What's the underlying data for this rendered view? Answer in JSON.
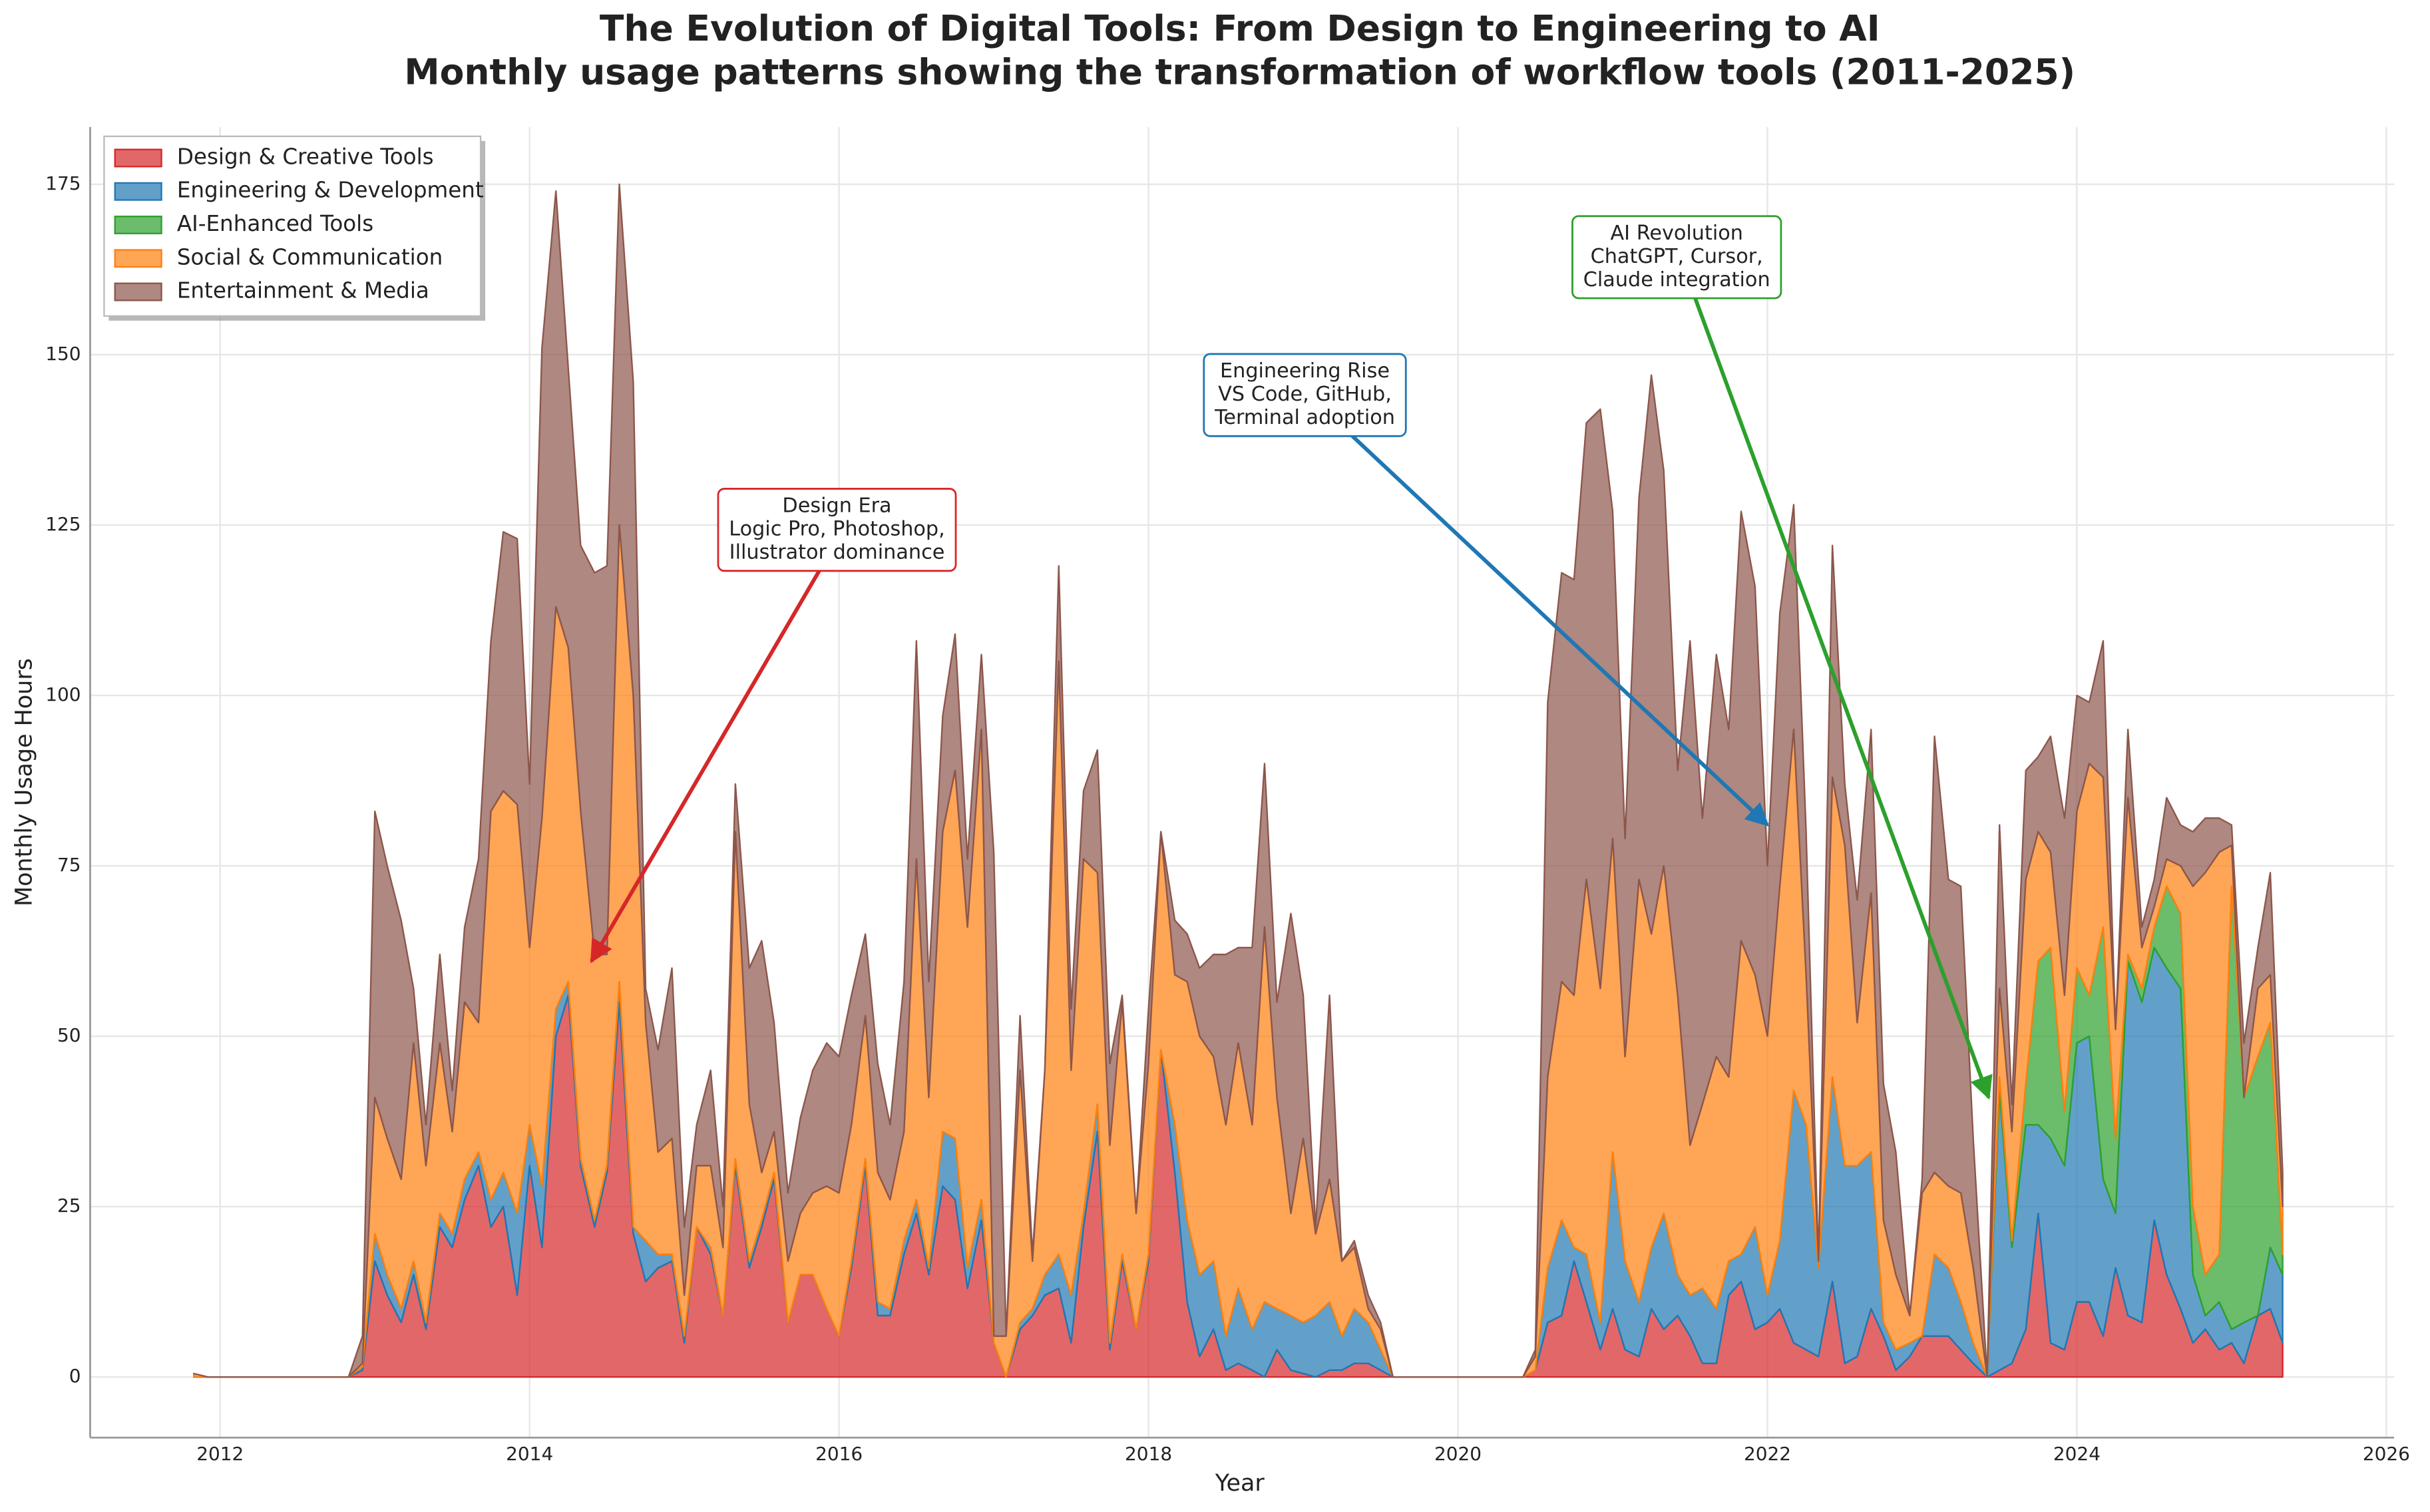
{
  "chart_data": {
    "type": "stacked_area",
    "title": "The Evolution of Digital Tools: From Design to Engineering to AI",
    "subtitle": "Monthly usage patterns showing the transformation of workflow tools (2011-2025)",
    "xlabel": "Year",
    "ylabel": "Monthly Usage Hours",
    "xlim": [
      2011.16,
      2026.05
    ],
    "ylim": [
      -8.9,
      183.4
    ],
    "xticks": [
      2012,
      2014,
      2016,
      2018,
      2020,
      2022,
      2024,
      2026
    ],
    "yticks": [
      0,
      25,
      50,
      75,
      100,
      125,
      150,
      175
    ],
    "grid": true,
    "legend": "upper left",
    "x": [
      2011.83,
      2011.92,
      2012.83,
      2012.92,
      2013.0,
      2013.08,
      2013.17,
      2013.25,
      2013.33,
      2013.42,
      2013.5,
      2013.58,
      2013.67,
      2013.75,
      2013.83,
      2013.92,
      2014.0,
      2014.08,
      2014.17,
      2014.25,
      2014.33,
      2014.42,
      2014.5,
      2014.58,
      2014.67,
      2014.75,
      2014.83,
      2014.92,
      2015.0,
      2015.08,
      2015.17,
      2015.25,
      2015.33,
      2015.42,
      2015.5,
      2015.58,
      2015.67,
      2015.75,
      2015.83,
      2015.92,
      2016.0,
      2016.08,
      2016.17,
      2016.25,
      2016.33,
      2016.42,
      2016.5,
      2016.58,
      2016.67,
      2016.75,
      2016.83,
      2016.92,
      2017.0,
      2017.08,
      2017.17,
      2017.25,
      2017.33,
      2017.42,
      2017.5,
      2017.58,
      2017.67,
      2017.75,
      2017.83,
      2017.92,
      2018.0,
      2018.08,
      2018.17,
      2018.25,
      2018.33,
      2018.42,
      2018.5,
      2018.58,
      2018.67,
      2018.75,
      2018.83,
      2018.92,
      2019.0,
      2019.08,
      2019.17,
      2019.25,
      2019.33,
      2019.42,
      2019.5,
      2019.58,
      2020.42,
      2020.5,
      2020.58,
      2020.67,
      2020.75,
      2020.83,
      2020.92,
      2021.0,
      2021.08,
      2021.17,
      2021.25,
      2021.33,
      2021.42,
      2021.5,
      2021.58,
      2021.67,
      2021.75,
      2021.83,
      2021.92,
      2022.0,
      2022.08,
      2022.17,
      2022.25,
      2022.33,
      2022.42,
      2022.5,
      2022.58,
      2022.67,
      2022.75,
      2022.83,
      2022.92,
      2023.0,
      2023.08,
      2023.17,
      2023.25,
      2023.33,
      2023.42,
      2023.5,
      2023.58,
      2023.67,
      2023.75,
      2023.83,
      2023.92,
      2024.0,
      2024.08,
      2024.17,
      2024.25,
      2024.33,
      2024.42,
      2024.5,
      2024.58,
      2024.67,
      2024.75,
      2024.83,
      2024.92,
      2025.0,
      2025.08,
      2025.17,
      2025.25,
      2025.33
    ],
    "series": [
      {
        "name": "Design & Creative Tools",
        "color": "#d62728",
        "values": [
          0,
          0,
          0,
          1,
          17,
          12,
          8,
          15,
          7,
          22,
          19,
          26,
          31,
          22,
          25,
          12,
          31,
          19,
          50,
          56,
          31,
          22,
          30,
          55,
          21,
          14,
          16,
          17,
          5,
          22,
          18,
          9,
          31,
          16,
          22,
          29,
          8,
          15,
          15,
          10,
          6,
          16,
          31,
          9,
          9,
          18,
          24,
          15,
          28,
          26,
          13,
          23,
          5,
          0,
          7,
          9,
          12,
          13,
          5,
          22,
          36,
          4,
          17,
          7,
          17,
          48,
          30,
          11,
          3,
          7,
          1,
          2,
          1,
          0,
          4,
          1,
          0.5,
          0,
          1,
          1,
          2,
          2,
          1,
          0,
          0,
          1,
          8,
          9,
          17,
          11,
          4,
          10,
          4,
          3,
          10,
          7,
          9,
          6,
          2,
          2,
          12,
          14,
          7,
          8,
          10,
          5,
          4,
          3,
          14,
          2,
          3,
          10,
          6,
          1,
          3,
          6,
          6,
          6,
          4,
          2,
          0,
          1,
          2,
          7,
          24,
          5,
          4,
          11,
          11,
          6,
          16,
          9,
          8,
          23,
          15,
          10,
          5,
          7,
          4,
          5,
          2,
          9,
          10,
          5
        ]
      },
      {
        "name": "Engineering & Development",
        "color": "#1f77b4",
        "values": [
          0,
          0,
          0,
          0.5,
          4,
          3,
          2,
          2,
          1,
          2,
          2,
          3,
          2,
          4,
          5,
          12,
          6,
          9,
          4,
          2,
          1,
          1,
          1,
          3,
          1,
          6,
          2,
          1,
          1,
          0,
          1,
          0,
          1,
          1,
          1,
          1,
          0,
          0,
          0,
          0,
          0,
          1,
          1,
          2,
          1,
          2,
          2,
          1,
          8,
          9,
          3,
          3,
          0,
          0,
          1,
          1,
          3,
          5,
          7,
          2,
          4,
          1,
          1,
          0,
          1,
          0,
          7,
          12,
          12,
          10,
          5,
          11,
          6,
          11,
          6,
          8,
          7.5,
          9,
          10,
          5,
          8,
          6,
          3,
          0,
          0,
          0,
          8,
          14,
          2,
          7,
          4,
          23,
          13,
          8,
          9,
          17,
          6,
          6,
          11,
          8,
          5,
          4,
          15,
          4,
          10,
          37,
          33,
          13,
          30,
          29,
          28,
          23,
          2,
          3,
          2,
          0,
          12,
          10,
          7,
          3,
          0,
          41,
          17,
          30,
          13,
          30,
          27,
          38,
          39,
          23,
          8,
          52,
          47,
          40,
          45,
          47,
          10,
          2,
          7,
          2,
          6,
          0,
          9,
          10
        ]
      },
      {
        "name": "AI-Enhanced Tools",
        "color": "#2ca02c",
        "values": [
          0,
          0,
          0,
          0,
          0,
          0,
          0,
          0,
          0,
          0,
          0,
          0,
          0,
          0,
          0,
          0,
          0,
          0,
          0,
          0,
          0,
          0,
          0,
          0,
          0,
          0,
          0,
          0,
          0,
          0,
          0,
          0,
          0,
          0,
          0,
          0,
          0,
          0,
          0,
          0,
          0,
          0,
          0,
          0,
          0,
          0,
          0,
          0,
          0,
          0,
          0,
          0,
          0,
          0,
          0,
          0,
          0,
          0,
          0,
          0,
          0,
          0,
          0,
          0,
          0,
          0,
          0,
          0,
          0,
          0,
          0,
          0,
          0,
          0,
          0,
          0,
          0,
          0,
          0,
          0,
          0,
          0,
          0,
          0,
          0,
          0,
          0,
          0,
          0,
          0,
          0,
          0,
          0,
          0,
          0,
          0,
          0,
          0,
          0,
          0,
          0,
          0,
          0,
          0,
          0,
          0,
          0,
          0,
          0,
          0,
          0,
          0,
          0,
          0,
          0,
          0,
          0,
          0,
          0,
          0,
          0,
          2,
          1,
          6,
          24,
          28,
          8,
          11,
          6,
          37,
          11,
          1,
          2,
          3,
          12,
          11,
          10,
          6,
          7,
          65,
          33,
          38,
          33,
          3
        ]
      },
      {
        "name": "Social & Communication",
        "color": "#ff7f0e",
        "values": [
          0.5,
          0,
          0,
          0.5,
          20,
          20,
          19,
          32,
          23,
          25,
          15,
          26,
          19,
          57,
          56,
          60,
          26,
          54,
          59,
          49,
          51,
          39,
          31,
          67,
          78,
          32,
          15,
          17,
          6,
          9,
          12,
          10,
          48,
          23,
          7,
          6,
          9,
          9,
          12,
          18,
          21,
          20,
          21,
          19,
          16,
          16,
          50,
          25,
          44,
          54,
          50,
          69,
          1,
          6,
          37,
          7,
          30,
          87,
          33,
          52,
          34,
          29,
          37,
          17,
          28,
          32,
          22,
          35,
          35,
          30,
          31,
          36,
          30,
          55,
          31,
          15,
          27,
          12,
          18,
          11,
          9,
          2,
          3,
          0,
          0,
          2,
          28,
          35,
          37,
          55,
          49,
          46,
          30,
          62,
          46,
          51,
          41,
          22,
          27,
          37,
          27,
          46,
          37,
          38,
          52,
          53,
          22,
          1,
          44,
          47,
          21,
          38,
          15,
          11,
          4,
          21,
          12,
          12,
          16,
          11,
          0,
          13,
          16,
          30,
          19,
          14,
          17,
          23,
          34,
          22,
          16,
          23,
          6,
          3,
          4,
          7,
          47,
          59,
          59,
          6,
          0,
          10,
          7,
          7
        ]
      },
      {
        "name": "Entertainment & Media",
        "color": "#8c564b",
        "values": [
          0,
          0,
          0,
          4,
          42,
          40,
          38,
          8,
          6,
          13,
          6,
          11,
          24,
          25,
          38,
          39,
          24,
          69,
          61,
          41,
          39,
          56,
          57,
          50,
          46,
          5,
          15,
          25,
          10,
          6,
          14,
          6,
          7,
          20,
          34,
          16,
          10,
          14,
          18,
          21,
          20,
          19,
          12,
          16,
          11,
          22,
          32,
          17,
          17,
          20,
          10,
          11,
          71,
          0,
          8,
          1,
          0,
          14,
          9,
          10,
          18,
          12,
          1,
          0,
          8,
          0,
          8,
          7,
          10,
          15,
          25,
          14,
          26,
          24,
          14,
          44,
          21,
          1,
          27,
          0,
          1,
          2,
          1,
          0,
          0,
          1,
          55,
          60,
          61,
          67,
          85,
          48,
          32,
          56,
          82,
          58,
          33,
          74,
          42,
          59,
          51,
          63,
          57,
          25,
          40,
          33,
          21,
          0,
          34,
          9,
          18,
          24,
          20,
          18,
          0,
          2,
          64,
          45,
          45,
          19,
          0,
          24,
          4,
          16,
          11,
          17,
          26,
          17,
          9,
          20,
          0,
          10,
          3,
          4,
          9,
          6,
          8,
          8,
          5,
          3,
          8,
          6,
          15,
          5
        ]
      }
    ],
    "annotations": [
      {
        "text": [
          "Design Era",
          "Logic Pro, Photoshop,",
          "Illustrator dominance"
        ],
        "xy": [
          2014.4,
          61
        ],
        "color": "#d62728"
      },
      {
        "text": [
          "Engineering Rise",
          "VS Code, GitHub,",
          "Terminal adoption"
        ],
        "xy": [
          2022.0,
          81
        ],
        "color": "#1f77b4"
      },
      {
        "text": [
          "AI Revolution",
          "ChatGPT, Cursor,",
          "Claude integration"
        ],
        "xy": [
          2023.43,
          41
        ],
        "color": "#2ca02c"
      }
    ]
  }
}
